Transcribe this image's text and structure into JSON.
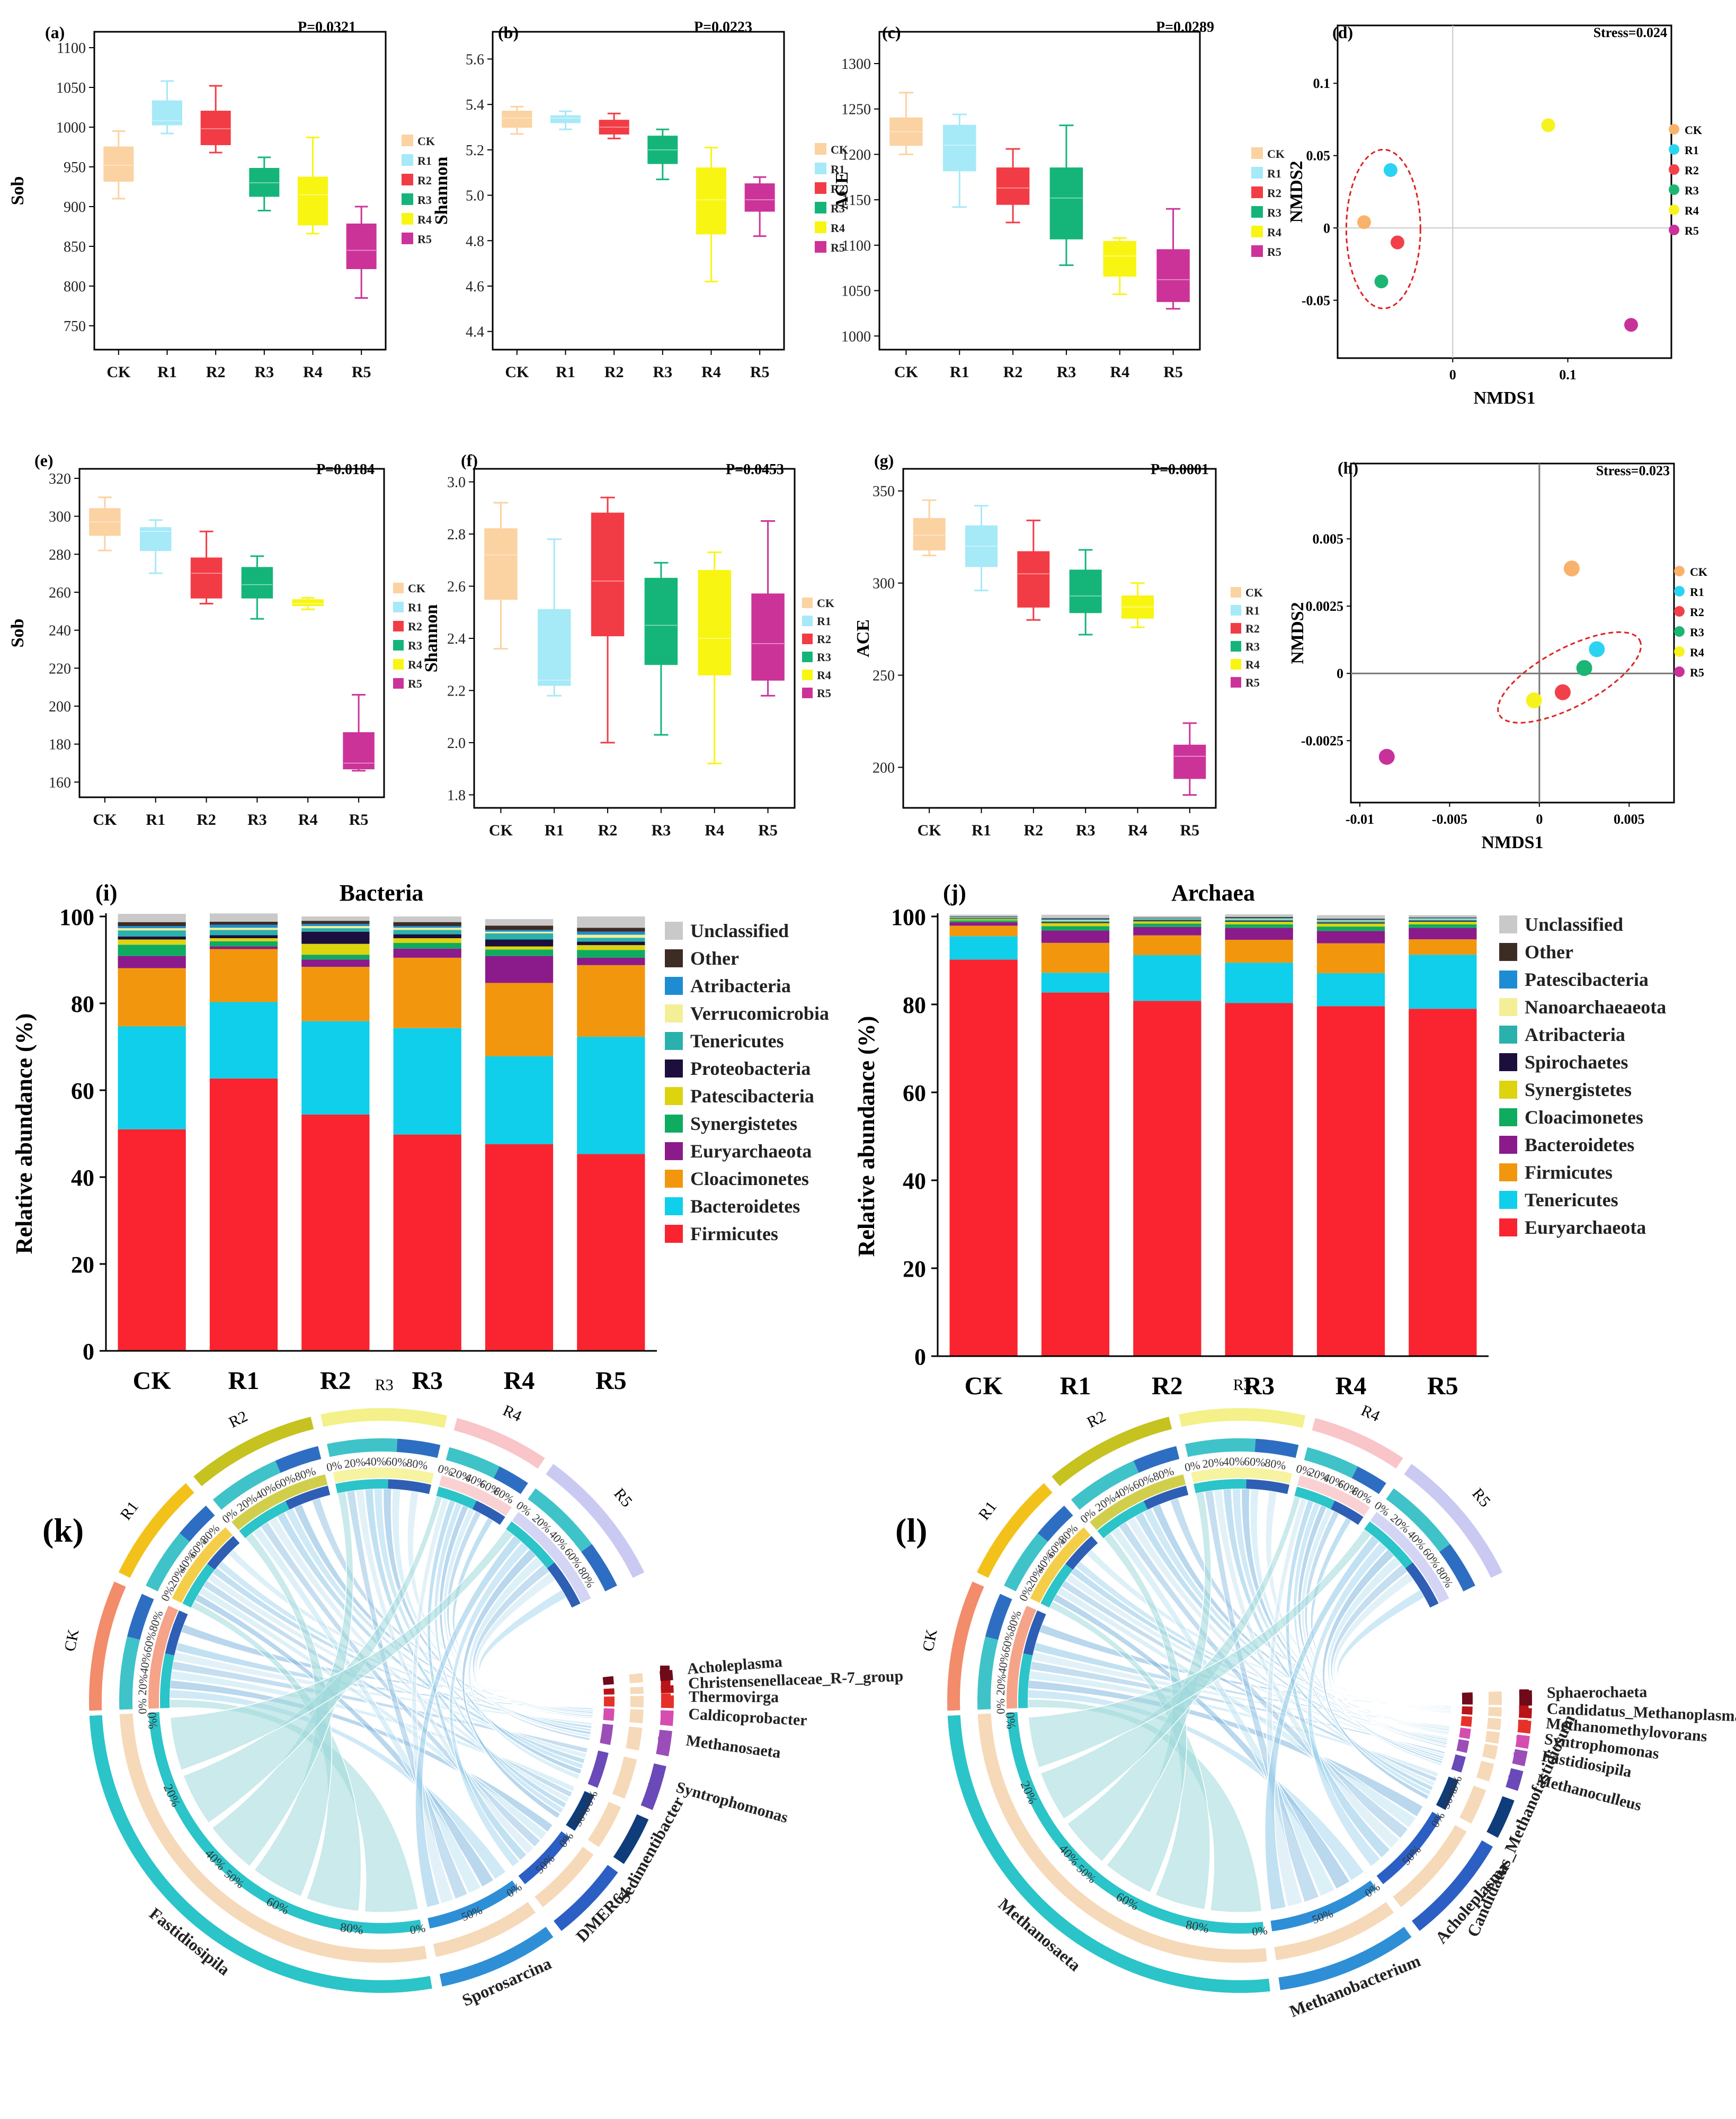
{
  "groups": [
    "CK",
    "R1",
    "R2",
    "R3",
    "R4",
    "R5"
  ],
  "group_colors": {
    "CK": "#F9B26B",
    "R1": "#2BD3F2",
    "R2": "#F2404B",
    "R3": "#1BB574",
    "R4": "#F6F21E",
    "R5": "#C8319A"
  },
  "box_colors": {
    "CK": "#FBD2A1",
    "R1": "#A6E9F7",
    "R2": "#F23C45",
    "R3": "#15B57A",
    "R4": "#F8F513",
    "R5": "#CC3399"
  },
  "chart_data": [
    {
      "id": "a",
      "type": "box",
      "label": "(a)",
      "pvalue": "P=0.0321",
      "ylabel": "Sob",
      "ylim": [
        720,
        1120
      ],
      "yticks": [
        750,
        800,
        850,
        900,
        950,
        1000,
        1050,
        1100
      ],
      "boxes": [
        {
          "min": 910,
          "q1": 932,
          "median": 952,
          "q3": 975,
          "max": 995
        },
        {
          "min": 992,
          "q1": 1003,
          "median": 1008,
          "q3": 1033,
          "max": 1058
        },
        {
          "min": 968,
          "q1": 978,
          "median": 998,
          "q3": 1020,
          "max": 1052
        },
        {
          "min": 895,
          "q1": 913,
          "median": 930,
          "q3": 948,
          "max": 962
        },
        {
          "min": 866,
          "q1": 877,
          "median": 915,
          "q3": 937,
          "max": 987
        },
        {
          "min": 785,
          "q1": 822,
          "median": 845,
          "q3": 878,
          "max": 900
        }
      ]
    },
    {
      "id": "b",
      "type": "box",
      "label": "(b)",
      "pvalue": "P=0.0223",
      "ylabel": "Shannon",
      "ylim": [
        4.32,
        5.72
      ],
      "yticks": [
        4.4,
        4.6,
        4.8,
        5.0,
        5.2,
        5.4,
        5.6
      ],
      "boxes": [
        {
          "min": 5.27,
          "q1": 5.3,
          "median": 5.34,
          "q3": 5.37,
          "max": 5.39
        },
        {
          "min": 5.29,
          "q1": 5.32,
          "median": 5.34,
          "q3": 5.35,
          "max": 5.37
        },
        {
          "min": 5.25,
          "q1": 5.27,
          "median": 5.3,
          "q3": 5.33,
          "max": 5.36
        },
        {
          "min": 5.07,
          "q1": 5.14,
          "median": 5.2,
          "q3": 5.26,
          "max": 5.29
        },
        {
          "min": 4.62,
          "q1": 4.83,
          "median": 4.98,
          "q3": 5.12,
          "max": 5.21
        },
        {
          "min": 4.82,
          "q1": 4.93,
          "median": 4.98,
          "q3": 5.05,
          "max": 5.08
        }
      ]
    },
    {
      "id": "c",
      "type": "box",
      "label": "(c)",
      "pvalue": "P=0.0289",
      "ylabel": "ACE",
      "ylim": [
        985,
        1335
      ],
      "yticks": [
        1000,
        1050,
        1100,
        1150,
        1200,
        1250,
        1300
      ],
      "boxes": [
        {
          "min": 1200,
          "q1": 1210,
          "median": 1225,
          "q3": 1240,
          "max": 1268
        },
        {
          "min": 1142,
          "q1": 1182,
          "median": 1210,
          "q3": 1232,
          "max": 1244
        },
        {
          "min": 1125,
          "q1": 1145,
          "median": 1163,
          "q3": 1185,
          "max": 1206
        },
        {
          "min": 1078,
          "q1": 1107,
          "median": 1152,
          "q3": 1185,
          "max": 1232
        },
        {
          "min": 1046,
          "q1": 1066,
          "median": 1088,
          "q3": 1104,
          "max": 1108
        },
        {
          "min": 1030,
          "q1": 1038,
          "median": 1062,
          "q3": 1095,
          "max": 1140
        }
      ]
    },
    {
      "id": "d",
      "type": "scatter",
      "label": "(d)",
      "stress": "Stress=0.024",
      "xlabel": "NMDS1",
      "ylabel": "NMDS2",
      "xlim": [
        -0.1,
        0.19
      ],
      "ylim": [
        -0.09,
        0.14
      ],
      "xticks": [
        0,
        0.1
      ],
      "xtick_labels": [
        "0",
        "0.1"
      ],
      "yticks": [
        -0.05,
        0,
        0.05,
        0.1
      ],
      "ytick_labels": [
        "-0.05",
        "0",
        "0.05",
        "0.1"
      ],
      "points": [
        {
          "group": "CK",
          "x": -0.077,
          "y": 0.004
        },
        {
          "group": "R1",
          "x": -0.054,
          "y": 0.04
        },
        {
          "group": "R2",
          "x": -0.048,
          "y": -0.01
        },
        {
          "group": "R3",
          "x": -0.062,
          "y": -0.037
        },
        {
          "group": "R4",
          "x": 0.083,
          "y": 0.071
        },
        {
          "group": "R5",
          "x": 0.155,
          "y": -0.067
        }
      ]
    },
    {
      "id": "e",
      "type": "box",
      "label": "(e)",
      "pvalue": "P=0.0184",
      "ylabel": "Sob",
      "ylim": [
        152,
        325
      ],
      "yticks": [
        160,
        180,
        200,
        220,
        240,
        260,
        280,
        300,
        320
      ],
      "boxes": [
        {
          "min": 282,
          "q1": 290,
          "median": 297,
          "q3": 304,
          "max": 310
        },
        {
          "min": 270,
          "q1": 282,
          "median": 292,
          "q3": 294,
          "max": 298
        },
        {
          "min": 254,
          "q1": 257,
          "median": 270,
          "q3": 278,
          "max": 292
        },
        {
          "min": 246,
          "q1": 257,
          "median": 264,
          "q3": 273,
          "max": 279
        },
        {
          "min": 251,
          "q1": 253,
          "median": 254,
          "q3": 256,
          "max": 257
        },
        {
          "min": 166,
          "q1": 167,
          "median": 170,
          "q3": 186,
          "max": 206
        }
      ]
    },
    {
      "id": "f",
      "type": "box",
      "label": "(f)",
      "pvalue": "P=0.0453",
      "ylabel": "Shannon",
      "ylim": [
        1.75,
        3.05
      ],
      "yticks": [
        1.8,
        2.0,
        2.2,
        2.4,
        2.6,
        2.8,
        3.0
      ],
      "boxes": [
        {
          "min": 2.36,
          "q1": 2.55,
          "median": 2.72,
          "q3": 2.82,
          "max": 2.92
        },
        {
          "min": 2.18,
          "q1": 2.22,
          "median": 2.24,
          "q3": 2.51,
          "max": 2.78
        },
        {
          "min": 2.0,
          "q1": 2.41,
          "median": 2.62,
          "q3": 2.88,
          "max": 2.94
        },
        {
          "min": 2.03,
          "q1": 2.3,
          "median": 2.45,
          "q3": 2.63,
          "max": 2.69
        },
        {
          "min": 1.92,
          "q1": 2.26,
          "median": 2.4,
          "q3": 2.66,
          "max": 2.73
        },
        {
          "min": 2.18,
          "q1": 2.24,
          "median": 2.38,
          "q3": 2.57,
          "max": 2.85
        }
      ]
    },
    {
      "id": "g",
      "type": "box",
      "label": "(g)",
      "pvalue": "P=0.0001",
      "ylabel": "ACE",
      "ylim": [
        178,
        362
      ],
      "yticks": [
        200,
        250,
        300,
        350
      ],
      "boxes": [
        {
          "min": 315,
          "q1": 318,
          "median": 326,
          "q3": 335,
          "max": 345
        },
        {
          "min": 296,
          "q1": 309,
          "median": 320,
          "q3": 331,
          "max": 342
        },
        {
          "min": 280,
          "q1": 287,
          "median": 305,
          "q3": 317,
          "max": 334
        },
        {
          "min": 272,
          "q1": 284,
          "median": 293,
          "q3": 307,
          "max": 318
        },
        {
          "min": 276,
          "q1": 281,
          "median": 287,
          "q3": 293,
          "max": 300
        },
        {
          "min": 185,
          "q1": 194,
          "median": 206,
          "q3": 212,
          "max": 224
        }
      ]
    },
    {
      "id": "h",
      "type": "scatter",
      "label": "(h)",
      "stress": "Stress=0.023",
      "xlabel": "NMDS1",
      "ylabel": "NMDS2",
      "xlim": [
        -0.0105,
        0.0075
      ],
      "ylim": [
        -0.0048,
        0.0078
      ],
      "xticks": [
        -0.01,
        -0.005,
        0,
        0.005
      ],
      "xtick_labels": [
        "-0.01",
        "-0.005",
        "0",
        "0.005"
      ],
      "yticks": [
        -0.0025,
        0,
        0.0025,
        0.005
      ],
      "ytick_labels": [
        "-0.0025",
        "0",
        "0.0025",
        "0.005"
      ],
      "points": [
        {
          "group": "CK",
          "x": 0.0018,
          "y": 0.0039
        },
        {
          "group": "R1",
          "x": 0.0032,
          "y": 0.0009
        },
        {
          "group": "R2",
          "x": 0.0013,
          "y": -0.0007
        },
        {
          "group": "R3",
          "x": 0.0025,
          "y": 0.0002
        },
        {
          "group": "R4",
          "x": -0.0003,
          "y": -0.001
        },
        {
          "group": "R5",
          "x": -0.0085,
          "y": -0.0031
        }
      ]
    },
    {
      "id": "i",
      "type": "stacked_bar",
      "label": "(i)",
      "title": "Bacteria",
      "ylabel": "Relative abundance (%)",
      "ylim": [
        0,
        100
      ],
      "yticks": [
        0,
        20,
        40,
        60,
        80,
        100
      ],
      "categories": [
        "CK",
        "R1",
        "R2",
        "R3",
        "R4",
        "R5"
      ],
      "series": [
        {
          "name": "Firmicutes",
          "color": "#F9242F",
          "values": [
            51,
            62.7,
            54.4,
            49.8,
            47.6,
            45.3
          ]
        },
        {
          "name": "Bacteroidetes",
          "color": "#0FCFEB",
          "values": [
            23.7,
            17.6,
            21.5,
            24.5,
            20.2,
            27.0
          ]
        },
        {
          "name": "Cloacimonetes",
          "color": "#F2970D",
          "values": [
            13.4,
            12.2,
            12.5,
            16.2,
            16.9,
            16.5
          ]
        },
        {
          "name": "Euryarchaeota",
          "color": "#8B1A8A",
          "values": [
            2.8,
            0.6,
            1.7,
            2.1,
            6.2,
            1.7
          ]
        },
        {
          "name": "Synergistetes",
          "color": "#0FAB5F",
          "values": [
            2.6,
            1.2,
            1.1,
            1.3,
            1.5,
            1.8
          ]
        },
        {
          "name": "Patescibacteria",
          "color": "#DDD30F",
          "values": [
            1.2,
            0.7,
            2.5,
            1.1,
            0.7,
            1.1
          ]
        },
        {
          "name": "Proteobacteria",
          "color": "#1C0F3D",
          "values": [
            0.7,
            0.7,
            2.8,
            0.9,
            1.6,
            0.8
          ]
        },
        {
          "name": "Tenericutes",
          "color": "#2AB1AC",
          "values": [
            1.4,
            1.2,
            0.8,
            1.0,
            1.4,
            0.9
          ]
        },
        {
          "name": "Verrucomicrobia",
          "color": "#F4EE96",
          "values": [
            0.5,
            0.5,
            0.5,
            0.5,
            0.4,
            0.7
          ]
        },
        {
          "name": "Atribacteria",
          "color": "#1E8CD3",
          "values": [
            0.5,
            0.7,
            0.5,
            0.4,
            0.4,
            0.7
          ]
        },
        {
          "name": "Other",
          "color": "#3D2C24",
          "values": [
            0.9,
            0.7,
            0.7,
            0.9,
            1.0,
            0.9
          ]
        },
        {
          "name": "Unclassified",
          "color": "#C9C9C9",
          "values": [
            1.9,
            1.9,
            1.0,
            1.3,
            1.5,
            2.6
          ]
        }
      ]
    },
    {
      "id": "j",
      "type": "stacked_bar",
      "label": "(j)",
      "title": "Archaea",
      "ylabel": "Relative abundance (%)",
      "ylim": [
        0,
        100
      ],
      "yticks": [
        0,
        20,
        40,
        60,
        80,
        100
      ],
      "categories": [
        "CK",
        "R1",
        "R2",
        "R3",
        "R4",
        "R5"
      ],
      "series": [
        {
          "name": "Euryarchaeota",
          "color": "#F9242F",
          "values": [
            90.2,
            82.7,
            80.8,
            80.3,
            79.6,
            79.0
          ]
        },
        {
          "name": "Tenericutes",
          "color": "#0FCFEB",
          "values": [
            5.3,
            4.5,
            10.4,
            9.2,
            7.5,
            12.3
          ]
        },
        {
          "name": "Firmicutes",
          "color": "#F2970D",
          "values": [
            2.4,
            6.8,
            4.5,
            5.2,
            6.8,
            3.5
          ]
        },
        {
          "name": "Bacteroidetes",
          "color": "#8B1A8A",
          "values": [
            0.8,
            2.8,
            1.9,
            2.7,
            2.8,
            2.6
          ]
        },
        {
          "name": "Cloacimonetes",
          "color": "#0FAB5F",
          "values": [
            0.4,
            1.0,
            0.8,
            0.8,
            1.0,
            0.8
          ]
        },
        {
          "name": "Synergistetes",
          "color": "#DDD30F",
          "values": [
            0.3,
            0.7,
            0.5,
            0.6,
            0.7,
            0.6
          ]
        },
        {
          "name": "Spirochaetes",
          "color": "#1C0F3D",
          "values": [
            0.1,
            0.2,
            0.2,
            0.2,
            0.2,
            0.2
          ]
        },
        {
          "name": "Atribacteria",
          "color": "#2AB1AC",
          "values": [
            0.2,
            0.3,
            0.3,
            0.3,
            0.3,
            0.3
          ]
        },
        {
          "name": "Nanoarchaeaeota",
          "color": "#F4EE96",
          "values": [
            0.1,
            0.2,
            0.1,
            0.2,
            0.2,
            0.2
          ]
        },
        {
          "name": "Patescibacteria",
          "color": "#1E8CD3",
          "values": [
            0.1,
            0.2,
            0.1,
            0.2,
            0.2,
            0.2
          ]
        },
        {
          "name": "Other",
          "color": "#3D2C24",
          "values": [
            0.1,
            0.2,
            0.1,
            0.2,
            0.2,
            0.1
          ]
        },
        {
          "name": "Unclassified",
          "color": "#C9C9C9",
          "values": [
            0.4,
            0.8,
            0.4,
            0.6,
            0.8,
            0.5
          ]
        }
      ]
    },
    {
      "id": "k",
      "type": "chord",
      "label": "(k)",
      "sample_segments": [
        {
          "name": "CK",
          "color": "#F28C6B"
        },
        {
          "name": "R1",
          "color": "#F2C21B"
        },
        {
          "name": "R2",
          "color": "#C6C21F"
        },
        {
          "name": "R3",
          "color": "#F4F08A"
        },
        {
          "name": "R4",
          "color": "#F9C5C8"
        },
        {
          "name": "R5",
          "color": "#C9C9F2"
        }
      ],
      "genus_segments": [
        {
          "name": "Fastidiosipila",
          "color": "#2BC4C9"
        },
        {
          "name": "Sporosarcina",
          "color": "#2E8FD6"
        },
        {
          "name": "DMER64",
          "color": "#2B5FC4"
        },
        {
          "name": "Sedimentibacter",
          "color": "#0F3C7A"
        },
        {
          "name": "Syntrophomonas",
          "color": "#6A49B8"
        },
        {
          "name": "Methanosaeta",
          "color": "#9B4DB8"
        },
        {
          "name": "Caldicoprobacter",
          "color": "#D64DB0"
        },
        {
          "name": "Thermovirga",
          "color": "#E8302B"
        },
        {
          "name": "Christensenellaceae_R-7_group",
          "color": "#B81419"
        },
        {
          "name": "Acholeplasma",
          "color": "#6E0A1A"
        }
      ],
      "sample_tick_labels": [
        "0%",
        "20%",
        "40%",
        "60%",
        "80%"
      ],
      "genus_tick_labels": [
        "0%",
        "20%",
        "40%",
        "60%",
        "80%"
      ],
      "small_tick_labels": [
        "0%",
        "50%"
      ]
    },
    {
      "id": "l",
      "type": "chord",
      "label": "(l)",
      "sample_segments": [
        {
          "name": "CK",
          "color": "#F28C6B"
        },
        {
          "name": "R1",
          "color": "#F2C21B"
        },
        {
          "name": "R2",
          "color": "#C6C21F"
        },
        {
          "name": "R3",
          "color": "#F4F08A"
        },
        {
          "name": "R4",
          "color": "#F9C5C8"
        },
        {
          "name": "R5",
          "color": "#C9C9F2"
        }
      ],
      "genus_segments": [
        {
          "name": "Methanosaeta",
          "color": "#2BC4C9"
        },
        {
          "name": "Methanobacterium",
          "color": "#2E8FD6"
        },
        {
          "name": "Acholeplasma",
          "color": "#2B5FC4"
        },
        {
          "name": "Candidatus_Methanofastidiosum",
          "color": "#0F3C7A"
        },
        {
          "name": "Methanoculleus",
          "color": "#6A49B8"
        },
        {
          "name": "Fastidiosipila",
          "color": "#9B4DB8"
        },
        {
          "name": "Syntrophomonas",
          "color": "#D64DB0"
        },
        {
          "name": "Methanomethylovorans",
          "color": "#E8302B"
        },
        {
          "name": "Candidatus_Methanoplasma",
          "color": "#B81419"
        },
        {
          "name": "Sphaerochaeta",
          "color": "#6E0A1A"
        }
      ],
      "sample_tick_labels": [
        "0%",
        "20%",
        "40%",
        "60%",
        "80%"
      ],
      "genus_tick_labels": [
        "0%",
        "20%",
        "40%",
        "60%",
        "80%"
      ],
      "small_tick_labels": [
        "0%",
        "50%"
      ]
    }
  ]
}
